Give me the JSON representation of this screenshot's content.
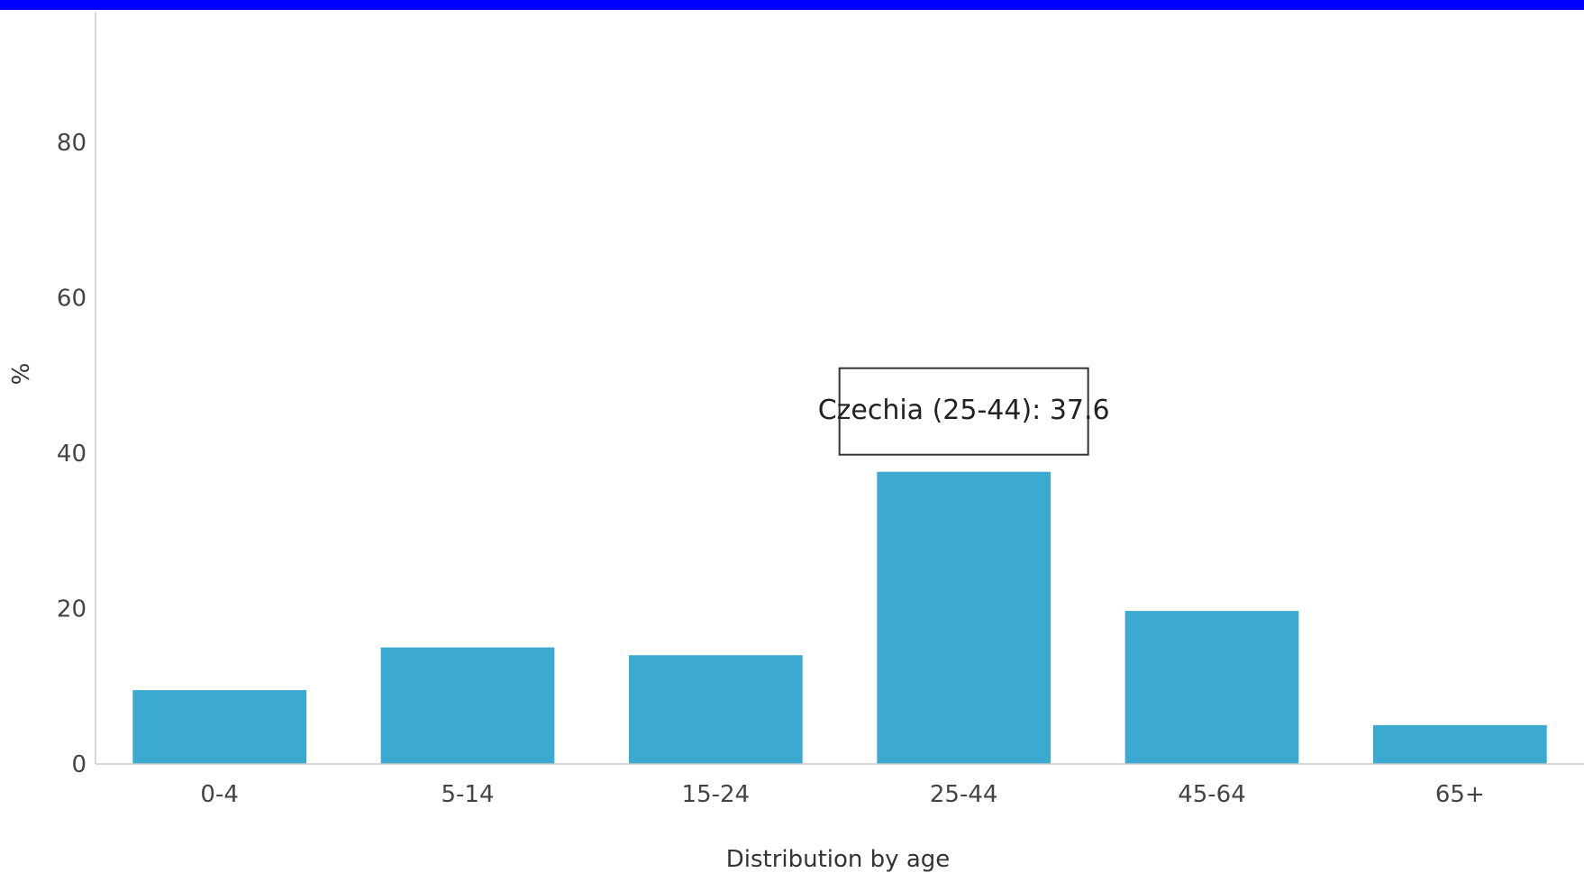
{
  "theme": {
    "top_bar_color": "#0000ff",
    "bar_color": "#3caad0",
    "axis_color": "#cccccc"
  },
  "tooltip": {
    "text": "Czechia (25-44): 37.6"
  },
  "chart_data": {
    "type": "bar",
    "title": "",
    "xlabel": "Distribution by age",
    "ylabel": "%",
    "categories": [
      "0-4",
      "5-14",
      "15-24",
      "25-44",
      "45-64",
      "65+"
    ],
    "series": [
      {
        "name": "Czechia",
        "values": [
          9.5,
          15.0,
          14.0,
          37.6,
          19.7,
          5.0
        ]
      }
    ],
    "ylim": [
      0,
      80
    ],
    "yticks": [
      0,
      20,
      40,
      60,
      80
    ],
    "grid": false,
    "legend": "none",
    "highlighted": {
      "category": "25-44",
      "value": 37.6
    }
  }
}
